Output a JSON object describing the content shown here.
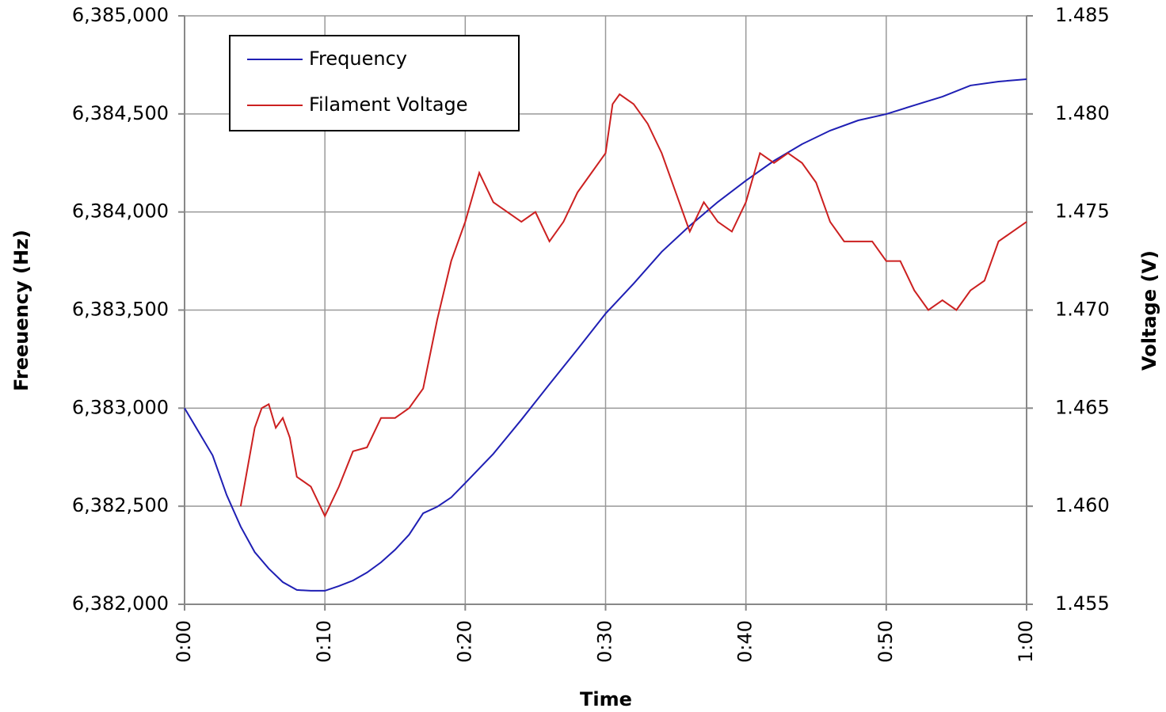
{
  "chart_data": {
    "type": "line",
    "x_label": "Time",
    "y_label": "Freeuency (Hz)",
    "y2_label": "Voltage (V)",
    "xlim": [
      0,
      60
    ],
    "xticks": [
      {
        "value": 0,
        "label": "0:00"
      },
      {
        "value": 10,
        "label": "0:10"
      },
      {
        "value": 20,
        "label": "0:20"
      },
      {
        "value": 30,
        "label": "0:30"
      },
      {
        "value": 40,
        "label": "0:40"
      },
      {
        "value": 50,
        "label": "0:50"
      },
      {
        "value": 60,
        "label": "1:00"
      }
    ],
    "ylim": [
      6382000,
      6385000
    ],
    "yticks": [
      {
        "value": 6382000,
        "label": "6,382,000"
      },
      {
        "value": 6382500,
        "label": "6,382,500"
      },
      {
        "value": 6383000,
        "label": "6,383,000"
      },
      {
        "value": 6383500,
        "label": "6,383,500"
      },
      {
        "value": 6384000,
        "label": "6,384,000"
      },
      {
        "value": 6384500,
        "label": "6,384,500"
      },
      {
        "value": 6385000,
        "label": "6,385,000"
      }
    ],
    "y2lim": [
      1.455,
      1.485
    ],
    "y2ticks": [
      1.455,
      {
        "value": 1.46,
        "label": "1.460"
      },
      1.465,
      {
        "value": 1.47,
        "label": "1.470"
      },
      1.475,
      {
        "value": 1.48,
        "label": "1.480"
      },
      1.485
    ],
    "grid": true,
    "legend": "upper left",
    "series": [
      {
        "name": "Frequency",
        "color": "#1f1fb4",
        "x": [
          0,
          2,
          3,
          4,
          5,
          6,
          7,
          8,
          9,
          10,
          11,
          12,
          13,
          14,
          15,
          16,
          17,
          18,
          19,
          20,
          22,
          24,
          26,
          28,
          30,
          32,
          34,
          36,
          38,
          40,
          42,
          44,
          46,
          48,
          50,
          52,
          54,
          56,
          58,
          60
        ],
        "values": [
          6383000,
          6382759,
          6382557,
          6382396,
          6382266,
          6382182,
          6382113,
          6382073,
          6382069,
          6382069,
          6382093,
          6382121,
          6382162,
          6382214,
          6382278,
          6382355,
          6382464,
          6382497,
          6382545,
          6382618,
          6382767,
          6382941,
          6383122,
          6383300,
          6383482,
          6383635,
          6383797,
          6383930,
          6384051,
          6384160,
          6384261,
          6384346,
          6384415,
          6384467,
          6384499,
          6384544,
          6384588,
          6384645,
          6384665,
          6384677
        ]
      },
      {
        "name": "Filament Voltage",
        "color": "#cc2020",
        "axis": "y2",
        "x": [
          4,
          5,
          5.5,
          6,
          6.5,
          7,
          7.5,
          8,
          9,
          10,
          11,
          12,
          13,
          14,
          15,
          16,
          17,
          18,
          19,
          20,
          21,
          22,
          23,
          24,
          25,
          26,
          27,
          28,
          29,
          30,
          30.5,
          31,
          32,
          33,
          34,
          35,
          36,
          37,
          38,
          39,
          40,
          41,
          42,
          43,
          44,
          45,
          46,
          47,
          48,
          49,
          50,
          51,
          52,
          53,
          54,
          55,
          56,
          57,
          58,
          59,
          60
        ],
        "values": [
          1.46,
          1.464,
          1.465,
          1.4652,
          1.464,
          1.4645,
          1.4635,
          1.4615,
          1.461,
          1.4595,
          1.461,
          1.4628,
          1.463,
          1.4645,
          1.4645,
          1.465,
          1.466,
          1.4695,
          1.4725,
          1.4745,
          1.477,
          1.4755,
          1.475,
          1.4745,
          1.475,
          1.4735,
          1.4745,
          1.476,
          1.477,
          1.478,
          1.4805,
          1.481,
          1.4805,
          1.4795,
          1.478,
          1.476,
          1.474,
          1.4755,
          1.4745,
          1.474,
          1.4755,
          1.478,
          1.4775,
          1.478,
          1.4775,
          1.4765,
          1.4745,
          1.4735,
          1.4735,
          1.4735,
          1.4725,
          1.4725,
          1.471,
          1.47,
          1.4705,
          1.47,
          1.471,
          1.4715,
          1.4735,
          1.474,
          1.4745
        ]
      }
    ]
  }
}
